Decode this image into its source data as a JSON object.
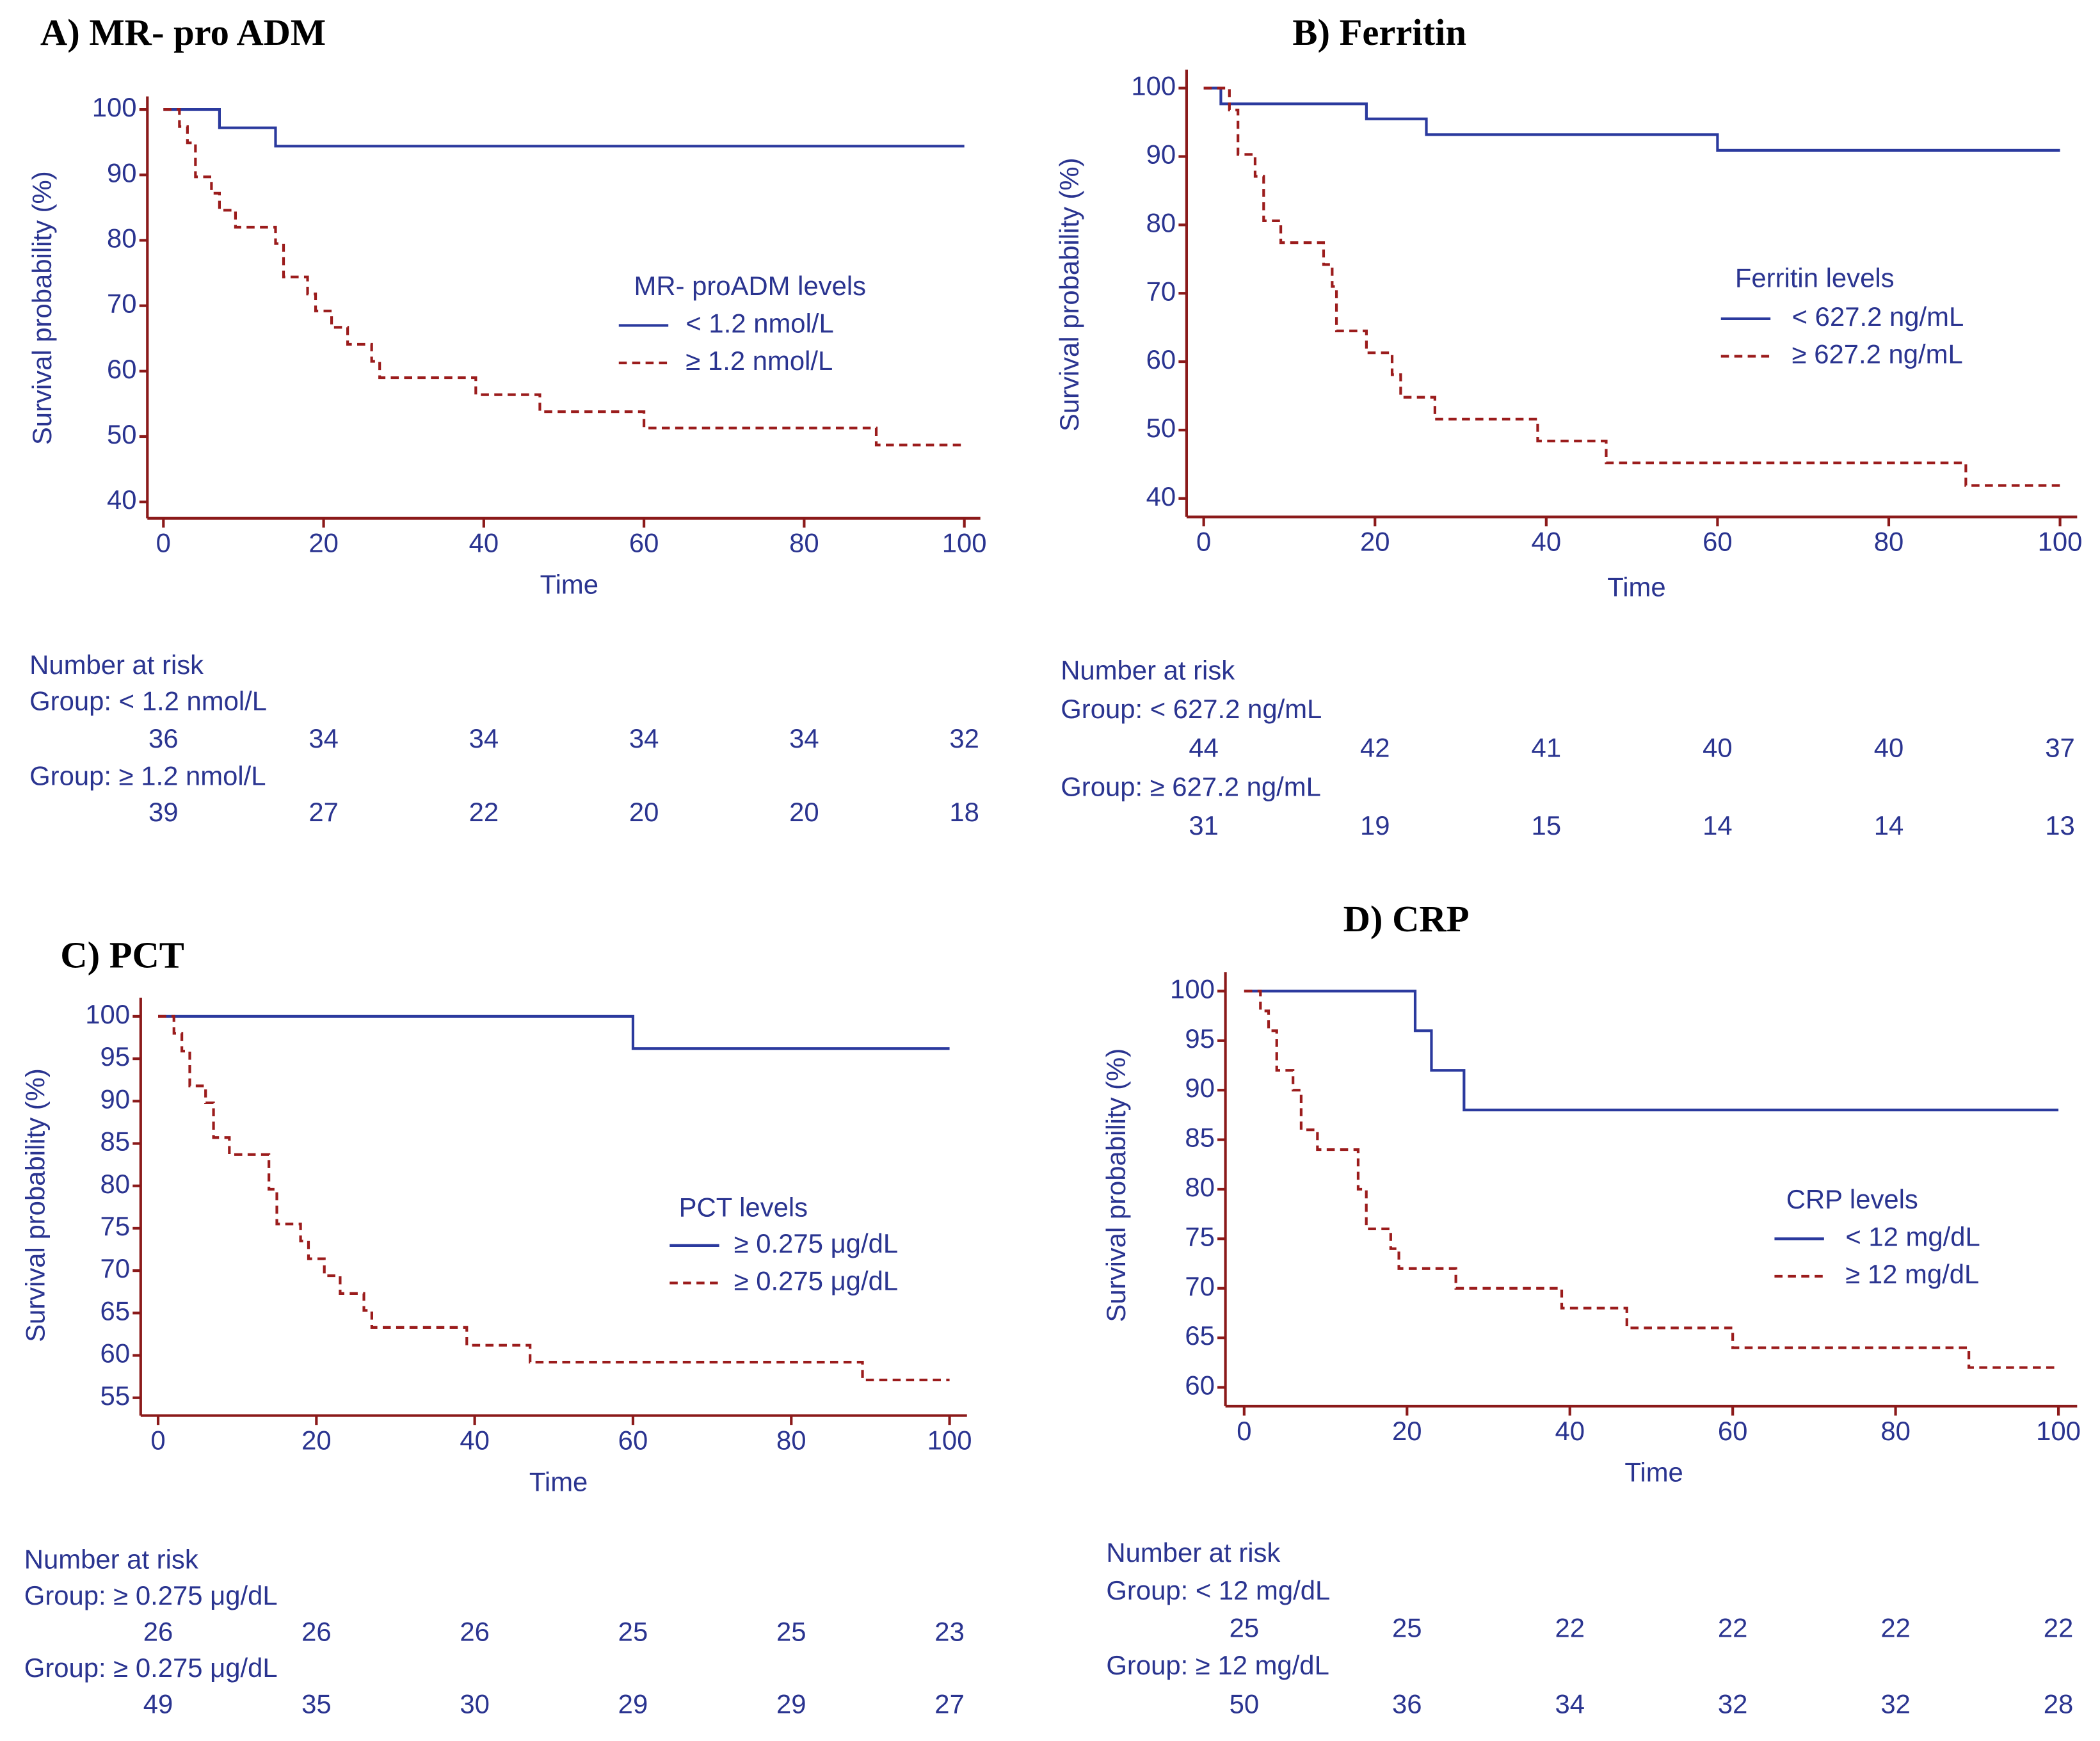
{
  "chart_data": [
    {
      "type": "step",
      "title": "A) MR- pro ADM",
      "xlabel": "Time",
      "ylabel": "Survival probability (%)",
      "legend_title": "MR- proADM levels",
      "xlim": [
        -2,
        102
      ],
      "ylim": [
        37.5,
        102
      ],
      "xticks": [
        0,
        20,
        40,
        60,
        80,
        100
      ],
      "yticks": [
        40,
        50,
        60,
        70,
        80,
        90,
        100
      ],
      "series": [
        {
          "name": "< 1.2 nmol/L",
          "color": "#2b3a9e",
          "x": [
            0,
            7,
            14,
            100
          ],
          "values": [
            100,
            97.2,
            94.4,
            94.4
          ]
        },
        {
          "name": "≥ 1.2 nmol/L",
          "color": "#9b1c1c",
          "x": [
            0,
            2,
            3,
            4,
            6,
            7,
            9,
            14,
            15,
            18,
            19,
            21,
            23,
            26,
            27,
            39,
            47,
            60,
            89,
            100
          ],
          "values": [
            100,
            97.4,
            94.9,
            89.7,
            87.2,
            84.6,
            82,
            79.5,
            74.4,
            71.8,
            69.2,
            66.7,
            64.1,
            61.5,
            59,
            56.4,
            53.8,
            51.3,
            48.7,
            48.7
          ]
        }
      ],
      "risk_title": "Number at risk",
      "risk": [
        {
          "label": "Group: < 1.2 nmol/L",
          "values": [
            36,
            34,
            34,
            34,
            34,
            32
          ]
        },
        {
          "label": "Group: ≥ 1.2 nmol/L",
          "values": [
            39,
            27,
            22,
            20,
            20,
            18
          ]
        }
      ]
    },
    {
      "type": "step",
      "title": "B) Ferritin",
      "xlabel": "Time",
      "ylabel": "Survival probability (%)",
      "legend_title": "Ferritin levels",
      "xlim": [
        -2,
        102
      ],
      "ylim": [
        37.3,
        102.7
      ],
      "xticks": [
        0,
        20,
        40,
        60,
        80,
        100
      ],
      "yticks": [
        40,
        50,
        60,
        70,
        80,
        90,
        100
      ],
      "series": [
        {
          "name": "< 627.2 ng/mL",
          "color": "#2b3a9e",
          "x": [
            0,
            2,
            19,
            26,
            60,
            100
          ],
          "values": [
            100,
            97.7,
            95.5,
            93.2,
            90.9,
            90.9
          ]
        },
        {
          "name": "≥ 627.2 ng/mL",
          "color": "#9b1c1c",
          "x": [
            0,
            3,
            4,
            6,
            7,
            9,
            14,
            15,
            15.5,
            19,
            22,
            23,
            27,
            39,
            47,
            89,
            100
          ],
          "values": [
            100,
            96.8,
            90.3,
            87.1,
            80.6,
            77.4,
            74.2,
            71,
            64.5,
            61.3,
            58.1,
            54.8,
            51.6,
            48.4,
            45.2,
            41.9,
            41.9
          ]
        }
      ],
      "risk_title": "Number at risk",
      "risk": [
        {
          "label": "Group: < 627.2 ng/mL",
          "values": [
            44,
            42,
            41,
            40,
            40,
            37
          ]
        },
        {
          "label": "Group: ≥ 627.2 ng/mL",
          "values": [
            31,
            19,
            15,
            14,
            14,
            13
          ]
        }
      ]
    },
    {
      "type": "step",
      "title": "C) PCT",
      "xlabel": "Time",
      "ylabel": "Survival probability (%)",
      "legend_title": "PCT levels",
      "xlim": [
        -2.2,
        102.2
      ],
      "ylim": [
        52.9,
        102.2
      ],
      "xticks": [
        0,
        20,
        40,
        60,
        80,
        100
      ],
      "yticks": [
        55,
        60,
        65,
        70,
        75,
        80,
        85,
        90,
        95,
        100
      ],
      "series": [
        {
          "name": "≥ 0.275 μg/dL",
          "color": "#2b3a9e",
          "x": [
            0,
            60,
            100
          ],
          "values": [
            100,
            96.2,
            96.2
          ]
        },
        {
          "name": "≥ 0.275 μg/dL",
          "color": "#9b1c1c",
          "x": [
            0,
            2,
            3,
            4,
            6,
            7,
            9,
            14,
            15,
            18,
            19,
            21,
            23,
            26,
            27,
            39,
            47,
            89,
            100
          ],
          "values": [
            100,
            98,
            95.9,
            91.8,
            89.8,
            85.7,
            83.7,
            79.6,
            75.5,
            73.5,
            71.4,
            69.4,
            67.3,
            65.3,
            63.3,
            61.2,
            59.2,
            57.1,
            57.1
          ]
        }
      ],
      "risk_title": "Number at risk",
      "risk": [
        {
          "label": "Group: ≥ 0.275 μg/dL",
          "values": [
            26,
            26,
            26,
            25,
            25,
            23
          ]
        },
        {
          "label": "Group: ≥ 0.275 μg/dL",
          "values": [
            49,
            35,
            30,
            29,
            29,
            27
          ]
        }
      ]
    },
    {
      "type": "step",
      "title": "D) CRP",
      "xlabel": "Time",
      "ylabel": "Survival probability (%)",
      "legend_title": "CRP levels",
      "xlim": [
        -2.3,
        102.3
      ],
      "ylim": [
        58.1,
        101.9
      ],
      "xticks": [
        0,
        20,
        40,
        60,
        80,
        100
      ],
      "yticks": [
        60,
        65,
        70,
        75,
        80,
        85,
        90,
        95,
        100
      ],
      "series": [
        {
          "name": "< 12 mg/dL",
          "color": "#2b3a9e",
          "x": [
            0,
            21,
            23,
            27,
            100
          ],
          "values": [
            100,
            96,
            92,
            88,
            88
          ]
        },
        {
          "name": "≥ 12 mg/dL",
          "color": "#9b1c1c",
          "x": [
            0,
            2,
            3,
            4,
            6,
            7,
            9,
            14,
            15,
            18,
            19,
            26,
            39,
            47,
            60,
            89,
            100
          ],
          "values": [
            100,
            98,
            96,
            92,
            90,
            86,
            84,
            80,
            76,
            74,
            72,
            70,
            68,
            66,
            64,
            62,
            62
          ]
        }
      ],
      "risk_title": "Number at risk",
      "risk": [
        {
          "label": "Group: < 12 mg/dL",
          "values": [
            25,
            25,
            22,
            22,
            22,
            22
          ]
        },
        {
          "label": "Group: ≥ 12 mg/dL",
          "values": [
            50,
            36,
            34,
            32,
            32,
            28
          ]
        }
      ]
    }
  ]
}
